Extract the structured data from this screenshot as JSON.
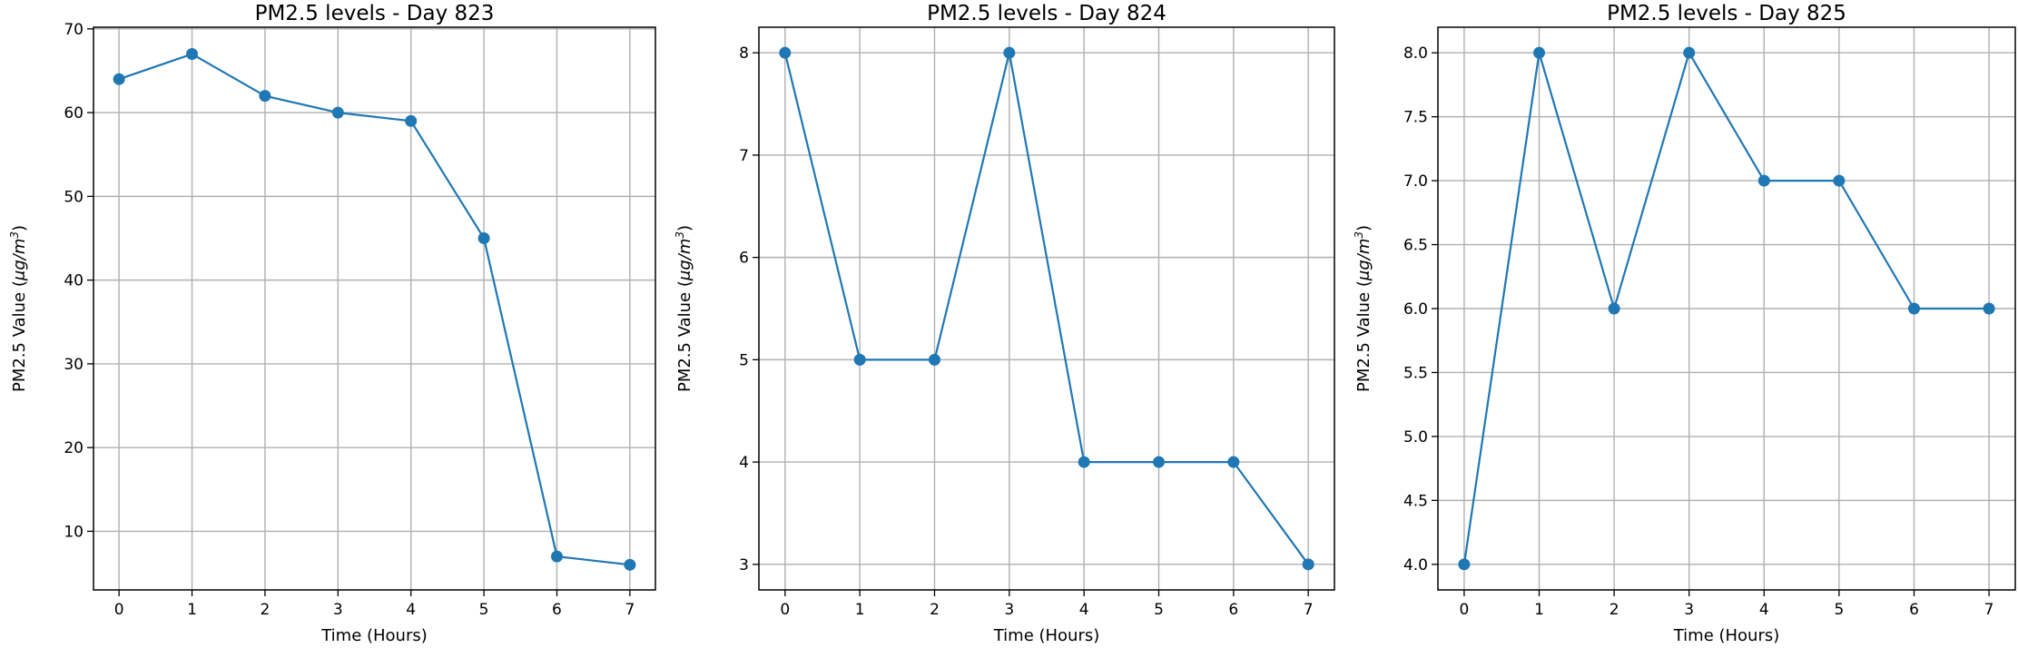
{
  "chart_data": [
    {
      "type": "line",
      "title": "PM2.5 levels - Day 823",
      "xlabel": "Time (Hours)",
      "ylabel": "PM2.5 Value (μg/m³)",
      "ylabel_main": "PM2.5 Value (",
      "ylabel_unit": "μg/m",
      "ylabel_sup": "3",
      "ylabel_close": ")",
      "x": [
        0,
        1,
        2,
        3,
        4,
        5,
        6,
        7
      ],
      "values": [
        64,
        67,
        62,
        60,
        59,
        45,
        7,
        6
      ],
      "xlim": [
        -0.35,
        7.35
      ],
      "ylim": [
        3.0,
        70.2
      ],
      "xticks": [
        0,
        1,
        2,
        3,
        4,
        5,
        6,
        7
      ],
      "xtick_labels": [
        "0",
        "1",
        "2",
        "3",
        "4",
        "5",
        "6",
        "7"
      ],
      "yticks": [
        10,
        20,
        30,
        40,
        50,
        60,
        70
      ],
      "ytick_labels": [
        "10",
        "20",
        "30",
        "40",
        "50",
        "60",
        "70"
      ],
      "grid": true,
      "color": "#1f77b4"
    },
    {
      "type": "line",
      "title": "PM2.5 levels - Day 824",
      "xlabel": "Time (Hours)",
      "ylabel": "PM2.5 Value (μg/m³)",
      "ylabel_main": "PM2.5 Value (",
      "ylabel_unit": "μg/m",
      "ylabel_sup": "3",
      "ylabel_close": ")",
      "x": [
        0,
        1,
        2,
        3,
        4,
        5,
        6,
        7
      ],
      "values": [
        8,
        5,
        5,
        8,
        4,
        4,
        4,
        3
      ],
      "xlim": [
        -0.35,
        7.35
      ],
      "ylim": [
        2.75,
        8.25
      ],
      "xticks": [
        0,
        1,
        2,
        3,
        4,
        5,
        6,
        7
      ],
      "xtick_labels": [
        "0",
        "1",
        "2",
        "3",
        "4",
        "5",
        "6",
        "7"
      ],
      "yticks": [
        3,
        4,
        5,
        6,
        7,
        8
      ],
      "ytick_labels": [
        "3",
        "4",
        "5",
        "6",
        "7",
        "8"
      ],
      "grid": true,
      "color": "#1f77b4"
    },
    {
      "type": "line",
      "title": "PM2.5 levels - Day 825",
      "xlabel": "Time (Hours)",
      "ylabel": "PM2.5 Value (μg/m³)",
      "ylabel_main": "PM2.5 Value (",
      "ylabel_unit": "μg/m",
      "ylabel_sup": "3",
      "ylabel_close": ")",
      "x": [
        0,
        1,
        2,
        3,
        4,
        5,
        6,
        7
      ],
      "values": [
        4,
        8,
        6,
        8,
        7,
        7,
        6,
        6
      ],
      "xlim": [
        -0.35,
        7.35
      ],
      "ylim": [
        3.8,
        8.2
      ],
      "xticks": [
        0,
        1,
        2,
        3,
        4,
        5,
        6,
        7
      ],
      "xtick_labels": [
        "0",
        "1",
        "2",
        "3",
        "4",
        "5",
        "6",
        "7"
      ],
      "yticks": [
        4.0,
        4.5,
        5.0,
        5.5,
        6.0,
        6.5,
        7.0,
        7.5,
        8.0
      ],
      "ytick_labels": [
        "4.0",
        "4.5",
        "5.0",
        "5.5",
        "6.0",
        "6.5",
        "7.0",
        "7.5",
        "8.0"
      ],
      "grid": true,
      "color": "#1f77b4"
    }
  ]
}
